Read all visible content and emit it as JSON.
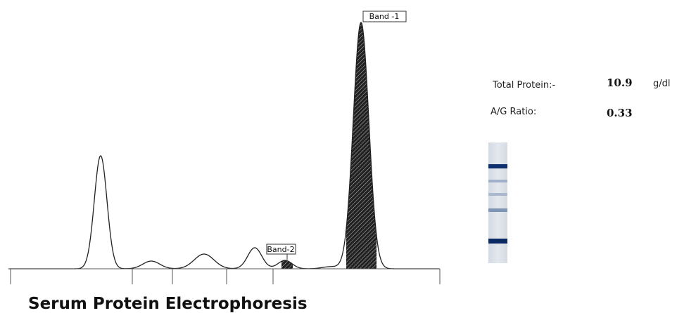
{
  "bands": [
    {
      "label": "Band -1"
    },
    {
      "label": "Band-2"
    }
  ],
  "results": {
    "total_protein": {
      "label": "Total Protein:-",
      "value": "10.9",
      "unit": "g/dl"
    },
    "ag_ratio": {
      "label": "A/G Ratio:",
      "value": "0.33"
    }
  },
  "title": "Serum Protein Electrophoresis"
}
